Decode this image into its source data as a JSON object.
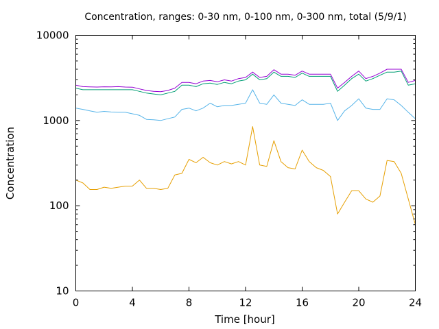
{
  "chart_data": {
    "type": "line",
    "title": "Concentration, ranges: 0-30 nm, 0-100 nm, 0-300 nm, total (5/9/1)",
    "xlabel": "Time [hour]",
    "ylabel": "Concentration",
    "xlim": [
      0,
      24
    ],
    "ylim": [
      10,
      10000
    ],
    "yscale": "log",
    "xticks": [
      0,
      4,
      8,
      12,
      16,
      20,
      24
    ],
    "yticks": [
      10,
      100,
      1000,
      10000
    ],
    "ytick_labels": [
      "10",
      "100",
      "1000",
      "10000"
    ],
    "grid": false,
    "legend": "none",
    "x": [
      0,
      0.5,
      1,
      1.5,
      2,
      2.5,
      3,
      3.5,
      4,
      4.5,
      5,
      5.5,
      6,
      6.5,
      7,
      7.5,
      8,
      8.5,
      9,
      9.5,
      10,
      10.5,
      11,
      11.5,
      12,
      12.5,
      13,
      13.5,
      14,
      14.5,
      15,
      15.5,
      16,
      16.5,
      17,
      17.5,
      18,
      18.5,
      19,
      19.5,
      20,
      20.5,
      21,
      21.5,
      22,
      22.5,
      23,
      23.5,
      24
    ],
    "series": [
      {
        "color": "#e69f00",
        "values": [
          200,
          185,
          155,
          155,
          165,
          160,
          165,
          170,
          170,
          200,
          160,
          160,
          155,
          160,
          230,
          240,
          350,
          320,
          370,
          320,
          300,
          330,
          310,
          330,
          300,
          850,
          300,
          290,
          580,
          330,
          280,
          270,
          450,
          330,
          280,
          260,
          220,
          80,
          110,
          150,
          150,
          120,
          110,
          130,
          340,
          330,
          240,
          120,
          60
        ]
      },
      {
        "color": "#009e73",
        "values": [
          2400,
          2300,
          2300,
          2300,
          2300,
          2300,
          2300,
          2300,
          2300,
          2200,
          2100,
          2050,
          2000,
          2100,
          2200,
          2600,
          2600,
          2500,
          2700,
          2750,
          2650,
          2800,
          2700,
          2900,
          3000,
          3500,
          3000,
          3100,
          3700,
          3300,
          3300,
          3200,
          3600,
          3300,
          3300,
          3300,
          3300,
          2200,
          2600,
          3100,
          3500,
          2900,
          3100,
          3400,
          3700,
          3700,
          3800,
          2600,
          2700
        ]
      },
      {
        "color": "#56b4e9",
        "values": [
          1400,
          1350,
          1300,
          1250,
          1280,
          1260,
          1250,
          1250,
          1200,
          1150,
          1030,
          1020,
          1000,
          1050,
          1100,
          1350,
          1400,
          1300,
          1400,
          1600,
          1450,
          1500,
          1500,
          1550,
          1600,
          2300,
          1600,
          1550,
          2000,
          1600,
          1550,
          1500,
          1750,
          1550,
          1550,
          1550,
          1600,
          1000,
          1300,
          1500,
          1800,
          1400,
          1350,
          1350,
          1800,
          1750,
          1500,
          1250,
          1050
        ]
      },
      {
        "color": "#9400d3",
        "values": [
          2600,
          2500,
          2480,
          2470,
          2490,
          2480,
          2500,
          2470,
          2460,
          2350,
          2250,
          2200,
          2180,
          2250,
          2400,
          2800,
          2800,
          2700,
          2900,
          2950,
          2850,
          3000,
          2900,
          3100,
          3200,
          3700,
          3200,
          3300,
          3950,
          3500,
          3500,
          3400,
          3800,
          3500,
          3500,
          3500,
          3500,
          2400,
          2800,
          3300,
          3800,
          3100,
          3300,
          3600,
          4000,
          4000,
          4000,
          2800,
          2950
        ]
      }
    ]
  }
}
